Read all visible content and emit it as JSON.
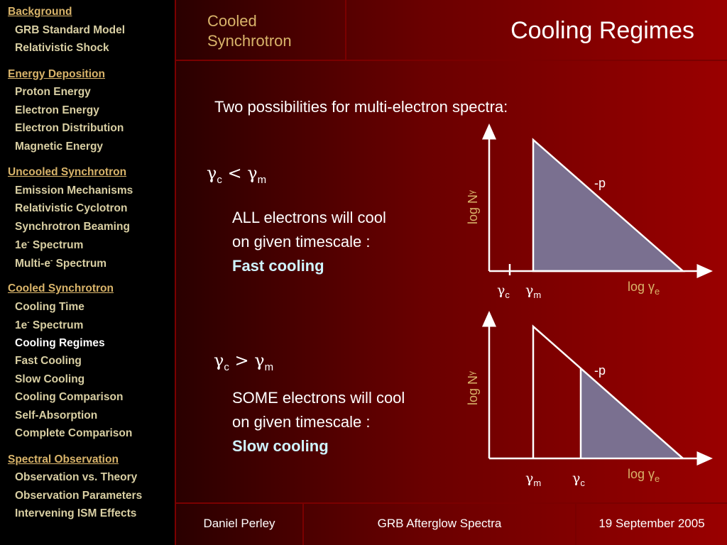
{
  "sidebar": {
    "sections": [
      {
        "title": "Background",
        "items": [
          "GRB Standard Model",
          "Relativistic Shock"
        ]
      },
      {
        "title": "Energy Deposition",
        "items": [
          "Proton Energy",
          "Electron Energy",
          "Electron Distribution",
          "Magnetic Energy"
        ]
      },
      {
        "title": "Uncooled Synchrotron",
        "items": [
          "Emission Mechanisms",
          "Relativistic Cyclotron",
          "Synchrotron Beaming",
          "1e- Spectrum",
          "Multi-e- Spectrum"
        ]
      },
      {
        "title": "Cooled Synchrotron",
        "items": [
          "Cooling Time",
          "1e- Spectrum",
          "Cooling Regimes",
          "Fast Cooling",
          "Slow Cooling",
          "Cooling Comparison",
          "Self-Absorption",
          "Complete Comparison"
        ]
      },
      {
        "title": "Spectral Observation",
        "items": [
          "Observation vs. Theory",
          "Observation Parameters",
          "Intervening ISM Effects"
        ]
      }
    ],
    "current": "Cooling Regimes"
  },
  "header": {
    "section_line1": "Cooled",
    "section_line2": "Synchrotron",
    "title": "Cooling Regimes"
  },
  "main": {
    "intro": "Two possibilities for multi-electron spectra:",
    "fast": {
      "cond_symbol": "γ",
      "cond_sub1": "c",
      "cond_op": " < ",
      "cond_sub2": "m",
      "line1": "ALL electrons will cool",
      "line2": "on given timescale :",
      "highlight": "Fast cooling"
    },
    "slow": {
      "cond_symbol": "γ",
      "cond_sub1": "c",
      "cond_op": " > ",
      "cond_sub2": "m",
      "line1": "SOME electrons will cool",
      "line2": "on given timescale :",
      "highlight": "Slow cooling"
    }
  },
  "diagrams": {
    "ylabel": "log N",
    "ylabel_sub": "γ",
    "xlabel": "log γ",
    "xlabel_sub": "e",
    "slope_label": "-p",
    "gamma": "γ",
    "sub_c": "c",
    "sub_m": "m",
    "fill_color": "#7a7090",
    "line_color": "#ffffff"
  },
  "footer": {
    "author": "Daniel Perley",
    "talk": "GRB Afterglow Spectra",
    "date": "19 September 2005"
  }
}
